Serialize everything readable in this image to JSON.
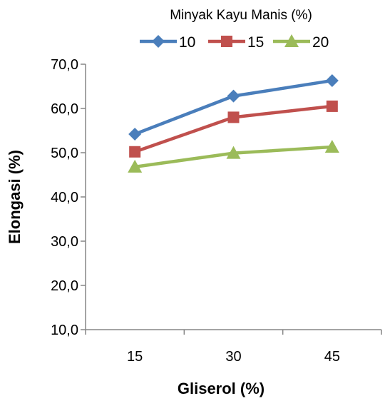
{
  "chart_data": {
    "type": "line",
    "title": "",
    "legend_title": "Minyak Kayu Manis (%)",
    "legend_position": "top",
    "xlabel": "Gliserol (%)",
    "ylabel": "Elongasi (%)",
    "categories": [
      "15",
      "30",
      "45"
    ],
    "y_ticks": [
      "10,0",
      "20,0",
      "30,0",
      "40,0",
      "50,0",
      "60,0",
      "70,0"
    ],
    "ylim": [
      10,
      70
    ],
    "grid": false,
    "series": [
      {
        "name": "10",
        "color": "#4a7ebb",
        "marker": "diamond",
        "values": [
          54.2,
          62.8,
          66.3
        ]
      },
      {
        "name": "15",
        "color": "#c0504d",
        "marker": "square",
        "values": [
          50.2,
          58.0,
          60.5
        ]
      },
      {
        "name": "20",
        "color": "#9bbb59",
        "marker": "triangle",
        "values": [
          46.8,
          49.9,
          51.3
        ]
      }
    ]
  }
}
